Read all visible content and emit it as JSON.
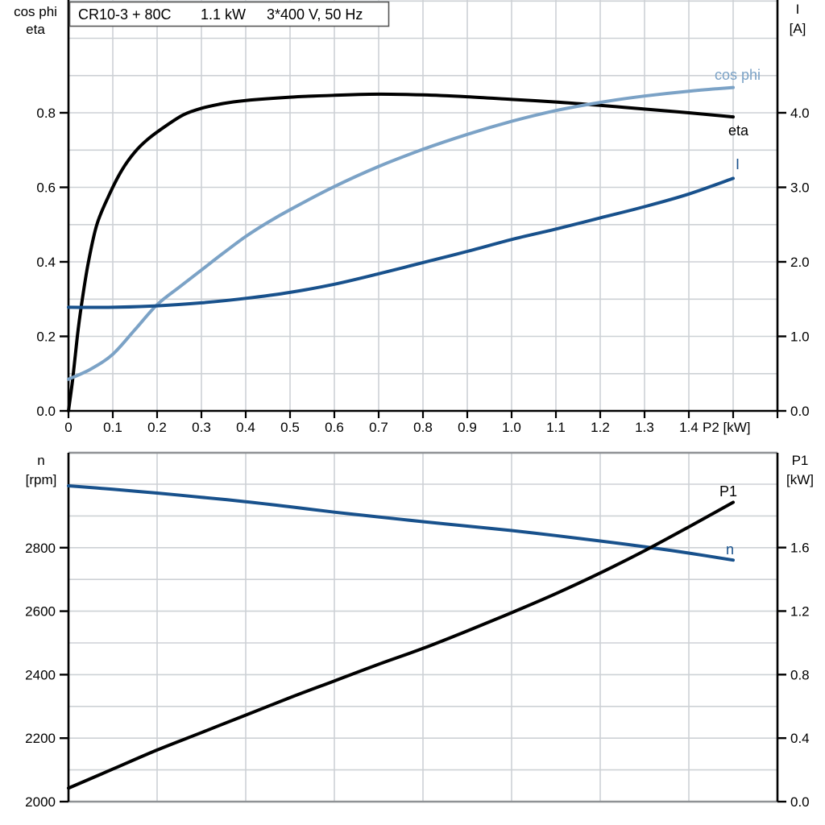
{
  "background": "#ffffff",
  "colors": {
    "black": "#000000",
    "dark_blue": "#18518C",
    "light_blue": "#7BA2C6",
    "grid": "#cdd1d5",
    "panel_border": "#8f9295"
  },
  "title_box": {
    "segments": [
      "CR10-3 + 80C",
      "1.1 kW",
      "3*400 V, 50 Hz"
    ]
  },
  "chart_data": [
    {
      "type": "line",
      "panel": "top",
      "left_axis": {
        "header_lines": [
          "cos phi",
          "eta"
        ],
        "tick_labels": [
          "0.0",
          "0.2",
          "0.4",
          "0.6",
          "0.8"
        ],
        "tick_values": [
          0.0,
          0.2,
          0.4,
          0.6,
          0.8
        ],
        "range": [
          0,
          1.1
        ],
        "minor_grid_step": 0.1
      },
      "right_axis": {
        "header_lines": [
          "I",
          "[A]"
        ],
        "tick_labels": [
          "0.0",
          "1.0",
          "2.0",
          "3.0",
          "4.0"
        ],
        "tick_values": [
          0.0,
          1.0,
          2.0,
          3.0,
          4.0
        ],
        "range": [
          0,
          5.5
        ],
        "minor_grid_step": 0.5
      },
      "x_axis": {
        "label": "P2 [kW]",
        "tick_labels": [
          "0",
          "0.1",
          "0.2",
          "0.3",
          "0.4",
          "0.5",
          "0.6",
          "0.7",
          "0.8",
          "0.9",
          "1.0",
          "1.1",
          "1.2",
          "1.3",
          "1.4"
        ],
        "tick_values": [
          0,
          0.1,
          0.2,
          0.3,
          0.4,
          0.5,
          0.6,
          0.7,
          0.8,
          0.9,
          1.0,
          1.1,
          1.2,
          1.3,
          1.4
        ],
        "range": [
          0,
          1.6
        ],
        "grid_step": 0.1
      },
      "series": [
        {
          "name": "eta",
          "axis": "left",
          "color": "#000000",
          "points": [
            [
              0,
              0
            ],
            [
              0.01,
              0.09
            ],
            [
              0.02,
              0.2
            ],
            [
              0.03,
              0.29
            ],
            [
              0.045,
              0.4
            ],
            [
              0.064,
              0.5
            ],
            [
              0.09,
              0.575
            ],
            [
              0.12,
              0.645
            ],
            [
              0.15,
              0.695
            ],
            [
              0.18,
              0.73
            ],
            [
              0.22,
              0.765
            ],
            [
              0.26,
              0.795
            ],
            [
              0.3,
              0.812
            ],
            [
              0.35,
              0.825
            ],
            [
              0.4,
              0.833
            ],
            [
              0.5,
              0.842
            ],
            [
              0.6,
              0.847
            ],
            [
              0.7,
              0.85
            ],
            [
              0.8,
              0.848
            ],
            [
              0.9,
              0.843
            ],
            [
              1.0,
              0.836
            ],
            [
              1.1,
              0.829
            ],
            [
              1.2,
              0.82
            ],
            [
              1.3,
              0.81
            ],
            [
              1.4,
              0.8
            ],
            [
              1.5,
              0.789
            ]
          ]
        },
        {
          "name": "cos phi",
          "axis": "left",
          "color": "#7BA2C6",
          "points": [
            [
              0,
              0.085
            ],
            [
              0.05,
              0.112
            ],
            [
              0.1,
              0.152
            ],
            [
              0.15,
              0.218
            ],
            [
              0.2,
              0.285
            ],
            [
              0.25,
              0.332
            ],
            [
              0.3,
              0.378
            ],
            [
              0.35,
              0.424
            ],
            [
              0.4,
              0.468
            ],
            [
              0.45,
              0.506
            ],
            [
              0.5,
              0.54
            ],
            [
              0.6,
              0.602
            ],
            [
              0.7,
              0.656
            ],
            [
              0.8,
              0.702
            ],
            [
              0.9,
              0.742
            ],
            [
              1.0,
              0.777
            ],
            [
              1.1,
              0.806
            ],
            [
              1.2,
              0.828
            ],
            [
              1.3,
              0.845
            ],
            [
              1.4,
              0.858
            ],
            [
              1.5,
              0.868
            ]
          ]
        },
        {
          "name": "I",
          "axis": "right",
          "color": "#18518C",
          "points": [
            [
              0,
              1.39
            ],
            [
              0.1,
              1.39
            ],
            [
              0.2,
              1.41
            ],
            [
              0.3,
              1.45
            ],
            [
              0.4,
              1.51
            ],
            [
              0.5,
              1.59
            ],
            [
              0.6,
              1.7
            ],
            [
              0.7,
              1.84
            ],
            [
              0.8,
              1.99
            ],
            [
              0.9,
              2.14
            ],
            [
              1.0,
              2.3
            ],
            [
              1.1,
              2.44
            ],
            [
              1.2,
              2.59
            ],
            [
              1.3,
              2.74
            ],
            [
              1.4,
              2.91
            ],
            [
              1.5,
              3.12
            ]
          ]
        }
      ]
    },
    {
      "type": "line",
      "panel": "bottom",
      "left_axis": {
        "header_lines": [
          "n",
          "[rpm]"
        ],
        "tick_labels": [
          "2000",
          "2200",
          "2400",
          "2600",
          "2800"
        ],
        "tick_values": [
          2000,
          2200,
          2400,
          2600,
          2800
        ],
        "range": [
          2000,
          3100
        ],
        "minor_grid_step": 100
      },
      "right_axis": {
        "header_lines": [
          "P1",
          "[kW]"
        ],
        "tick_labels": [
          "0.0",
          "0.4",
          "0.8",
          "1.2",
          "1.6"
        ],
        "tick_values": [
          0.0,
          0.4,
          0.8,
          1.2,
          1.6
        ],
        "range": [
          0,
          2.2
        ],
        "minor_grid_step": 0.2
      },
      "x_axis": {
        "label": "",
        "tick_labels": [],
        "tick_values": [],
        "range": [
          0,
          1.6
        ],
        "grid_step": 0.2
      },
      "series": [
        {
          "name": "n",
          "axis": "left",
          "color": "#18518C",
          "points": [
            [
              0,
              2995
            ],
            [
              0.1,
              2984
            ],
            [
              0.2,
              2972
            ],
            [
              0.3,
              2959
            ],
            [
              0.4,
              2945
            ],
            [
              0.5,
              2929
            ],
            [
              0.6,
              2912
            ],
            [
              0.7,
              2897
            ],
            [
              0.8,
              2882
            ],
            [
              0.9,
              2868
            ],
            [
              1.0,
              2854
            ],
            [
              1.1,
              2838
            ],
            [
              1.2,
              2821
            ],
            [
              1.3,
              2803
            ],
            [
              1.4,
              2783
            ],
            [
              1.5,
              2761
            ]
          ]
        },
        {
          "name": "P1",
          "axis": "right",
          "color": "#000000",
          "points": [
            [
              0,
              0.085
            ],
            [
              0.1,
              0.205
            ],
            [
              0.2,
              0.325
            ],
            [
              0.3,
              0.435
            ],
            [
              0.4,
              0.545
            ],
            [
              0.5,
              0.655
            ],
            [
              0.6,
              0.76
            ],
            [
              0.7,
              0.865
            ],
            [
              0.8,
              0.965
            ],
            [
              0.9,
              1.075
            ],
            [
              1.0,
              1.19
            ],
            [
              1.1,
              1.31
            ],
            [
              1.2,
              1.44
            ],
            [
              1.3,
              1.58
            ],
            [
              1.4,
              1.73
            ],
            [
              1.5,
              1.885
            ]
          ]
        }
      ]
    }
  ]
}
